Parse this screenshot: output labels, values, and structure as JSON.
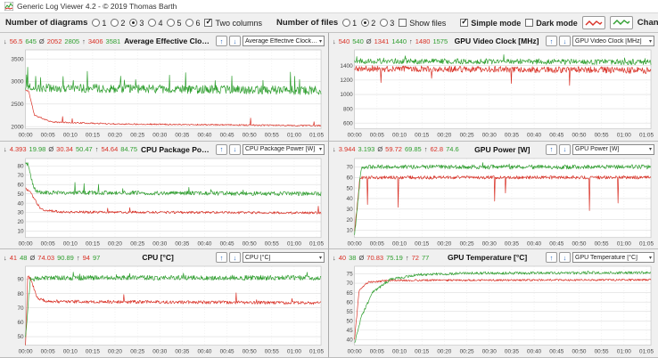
{
  "window": {
    "title": "Generic Log Viewer 4.2 - © 2019 Thomas Barth"
  },
  "icons": {
    "min_icon": "↓",
    "avg_icon": "Ø",
    "max_icon": "↑",
    "caret_icon": "▾",
    "up_icon": "↑",
    "down_icon": "↓"
  },
  "colors": {
    "file1": "#d93025",
    "file2": "#2e9e2e",
    "accent_blue": "#2b6cc4"
  },
  "toolbar": {
    "diagrams": {
      "label": "Number of diagrams",
      "options": [
        "1",
        "2",
        "3",
        "4",
        "5",
        "6"
      ],
      "selected": "3"
    },
    "two_columns": {
      "label": "Two columns",
      "checked": true
    },
    "files": {
      "label": "Number of files",
      "options": [
        "1",
        "2",
        "3"
      ],
      "selected": "2"
    },
    "show_files": {
      "label": "Show files",
      "checked": false
    },
    "simple_mode": {
      "label": "Simple mode",
      "checked": true
    },
    "dark_mode": {
      "label": "Dark mode",
      "checked": false
    },
    "change_all": {
      "label": "Change all"
    }
  },
  "x_axis": {
    "range": [
      0,
      66
    ],
    "tick_step_minutes": 5,
    "ticks": [
      "00:00",
      "00:05",
      "00:10",
      "00:15",
      "00:20",
      "00:25",
      "00:30",
      "00:35",
      "00:40",
      "00:45",
      "00:50",
      "00:55",
      "01:00",
      "01:05"
    ]
  },
  "chart_data": [
    {
      "type": "line",
      "title": "Average Effective Clock [MHz]",
      "dropdown": "Average Effective Clock [MHz]",
      "stats": {
        "min": [
          "56.5",
          "645"
        ],
        "avg": [
          "2052",
          "2805"
        ],
        "max": [
          "3406",
          "3581"
        ]
      },
      "y_ticks": [
        3500,
        3000,
        2500,
        2000
      ],
      "y_range": [
        1950,
        3700
      ],
      "series": [
        {
          "name": "file1",
          "color": "#d93025",
          "min": 56.5,
          "avg": 2052,
          "max": 3406,
          "seed": 11,
          "base": [
            [
              0,
              2805
            ],
            [
              0.7,
              2790
            ],
            [
              2,
              2250
            ],
            [
              6,
              2100
            ],
            [
              20,
              2060
            ],
            [
              66,
              2020
            ]
          ],
          "noise": 15,
          "spike": {
            "chance": 0.004,
            "amp": 180
          }
        },
        {
          "name": "file2",
          "color": "#2e9e2e",
          "min": 645,
          "avg": 2805,
          "max": 3581,
          "seed": 12,
          "base": [
            [
              0,
              2860
            ],
            [
              66,
              2800
            ]
          ],
          "noise": 95,
          "spike": {
            "chance": 0.035,
            "amp": 430
          }
        }
      ]
    },
    {
      "type": "line",
      "title": "GPU Video Clock [MHz]",
      "dropdown": "GPU Video Clock [MHz]",
      "stats": {
        "min": [
          "540",
          "540"
        ],
        "avg": [
          "1341",
          "1440"
        ],
        "max": [
          "1480",
          "1575"
        ]
      },
      "y_ticks": [
        1400,
        1200,
        1000,
        800,
        600
      ],
      "y_range": [
        520,
        1620
      ],
      "series": [
        {
          "name": "file1",
          "color": "#d93025",
          "min": 540,
          "avg": 1341,
          "max": 1480,
          "seed": 21,
          "base": [
            [
              0,
              1360
            ],
            [
              66,
              1335
            ]
          ],
          "noise": 45,
          "spike": {
            "chance": 0.005,
            "amp": -260
          }
        },
        {
          "name": "file2",
          "color": "#2e9e2e",
          "min": 540,
          "avg": 1440,
          "max": 1575,
          "seed": 22,
          "base": [
            [
              0,
              1465
            ],
            [
              66,
              1450
            ]
          ],
          "noise": 38,
          "spike": {
            "chance": 0.02,
            "amp": 95
          }
        }
      ]
    },
    {
      "type": "line",
      "title": "CPU Package Power [W]",
      "dropdown": "CPU Package Power [W]",
      "stats": {
        "min": [
          "4.393",
          "19.98"
        ],
        "avg": [
          "30.34",
          "50.47"
        ],
        "max": [
          "54.64",
          "84.75"
        ]
      },
      "y_ticks": [
        80,
        70,
        60,
        50,
        40,
        30,
        20,
        10
      ],
      "y_range": [
        3,
        88
      ],
      "series": [
        {
          "name": "file1",
          "color": "#d93025",
          "min": 4.393,
          "avg": 30.34,
          "max": 54.64,
          "seed": 31,
          "base": [
            [
              0,
              56
            ],
            [
              1,
              52
            ],
            [
              3.5,
              33
            ],
            [
              8,
              30.5
            ],
            [
              66,
              29.5
            ]
          ],
          "noise": 1.3,
          "spike": {
            "chance": 0.01,
            "amp": 9
          }
        },
        {
          "name": "file2",
          "color": "#2e9e2e",
          "min": 19.98,
          "avg": 50.47,
          "max": 84.75,
          "seed": 32,
          "base": [
            [
              0,
              84
            ],
            [
              0.6,
              82
            ],
            [
              1.8,
              56
            ],
            [
              3,
              51.5
            ],
            [
              66,
              50
            ]
          ],
          "noise": 2.2,
          "spike": {
            "chance": 0.018,
            "amp": 11
          }
        }
      ]
    },
    {
      "type": "line",
      "title": "GPU Power [W]",
      "dropdown": "GPU Power [W]",
      "stats": {
        "min": [
          "3.944",
          "3.193"
        ],
        "avg": [
          "59.72",
          "69.85"
        ],
        "max": [
          "62.8",
          "74.6"
        ]
      },
      "y_ticks": [
        70,
        60,
        50,
        40,
        30,
        20,
        10
      ],
      "y_range": [
        3,
        78
      ],
      "series": [
        {
          "name": "file1",
          "color": "#d93025",
          "min": 3.944,
          "avg": 59.72,
          "max": 62.8,
          "seed": 41,
          "base": [
            [
              0,
              8
            ],
            [
              1.2,
              60
            ],
            [
              66,
              60
            ]
          ],
          "noise": 1.6,
          "spike": {
            "chance": 0.01,
            "amp": -36
          }
        },
        {
          "name": "file2",
          "color": "#2e9e2e",
          "min": 3.193,
          "avg": 69.85,
          "max": 74.6,
          "seed": 42,
          "base": [
            [
              0,
              5
            ],
            [
              1.5,
              70
            ],
            [
              66,
              70
            ]
          ],
          "noise": 2.0,
          "spike": {
            "chance": 0.008,
            "amp": 4
          }
        }
      ]
    },
    {
      "type": "line",
      "title": "CPU [°C]",
      "dropdown": "CPU [°C]",
      "stats": {
        "min": [
          "41",
          "48"
        ],
        "avg": [
          "74.03",
          "90.89"
        ],
        "max": [
          "94",
          "97"
        ]
      },
      "y_ticks": [
        90,
        80,
        70,
        60,
        50
      ],
      "y_range": [
        44,
        99
      ],
      "series": [
        {
          "name": "file1",
          "color": "#d93025",
          "min": 41,
          "avg": 74.03,
          "max": 94,
          "seed": 51,
          "base": [
            [
              0,
              41
            ],
            [
              0.5,
              93
            ],
            [
              1.3,
              89
            ],
            [
              2.6,
              77
            ],
            [
              5,
              74.5
            ],
            [
              66,
              73.5
            ]
          ],
          "noise": 1.1,
          "spike": {
            "chance": 0.006,
            "amp": 7
          }
        },
        {
          "name": "file2",
          "color": "#2e9e2e",
          "min": 48,
          "avg": 90.89,
          "max": 97,
          "seed": 52,
          "base": [
            [
              0,
              48
            ],
            [
              1,
              88
            ],
            [
              2.2,
              91
            ],
            [
              66,
              91
            ]
          ],
          "noise": 1.7,
          "spike": {
            "chance": 0.02,
            "amp": 4
          }
        }
      ]
    },
    {
      "type": "line",
      "title": "GPU Temperature [°C]",
      "dropdown": "GPU Temperature [°C]",
      "stats": {
        "min": [
          "40",
          "38"
        ],
        "avg": [
          "70.83",
          "75.19"
        ],
        "max": [
          "72",
          "77"
        ]
      },
      "y_ticks": [
        75,
        70,
        65,
        60,
        55,
        50,
        45,
        40
      ],
      "y_range": [
        37,
        79
      ],
      "series": [
        {
          "name": "file1",
          "color": "#d93025",
          "min": 40,
          "avg": 70.83,
          "max": 72,
          "seed": 61,
          "base": [
            [
              0,
              40
            ],
            [
              1,
              66
            ],
            [
              3,
              70.5
            ],
            [
              8,
              71.5
            ],
            [
              66,
              71.8
            ]
          ],
          "noise": 0.5,
          "spike": {
            "chance": 0.0,
            "amp": 0
          }
        },
        {
          "name": "file2",
          "color": "#2e9e2e",
          "min": 38,
          "avg": 75.19,
          "max": 77,
          "seed": 62,
          "base": [
            [
              0,
              38
            ],
            [
              1.5,
              52
            ],
            [
              4,
              65
            ],
            [
              8,
              72
            ],
            [
              14,
              74.5
            ],
            [
              25,
              75.3
            ],
            [
              66,
              75.6
            ]
          ],
          "noise": 0.7,
          "spike": {
            "chance": 0.01,
            "amp": 1.2
          }
        }
      ]
    }
  ]
}
